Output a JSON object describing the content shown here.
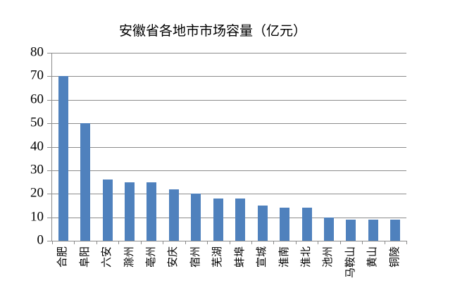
{
  "chart_data": {
    "type": "bar",
    "title": "安徽省各地市市场容量（亿元）",
    "categories": [
      "合肥",
      "阜阳",
      "六安",
      "滁州",
      "亳州",
      "安庆",
      "宿州",
      "芜湖",
      "蚌埠",
      "宣城",
      "淮南",
      "淮北",
      "池州",
      "马鞍山",
      "黄山",
      "铜陵"
    ],
    "values": [
      70,
      50,
      26,
      25,
      25,
      22,
      20,
      18,
      18,
      15,
      14,
      14,
      10,
      9,
      9,
      9
    ],
    "xlabel": "",
    "ylabel": "",
    "ylim": [
      0,
      80
    ],
    "yticks": [
      0,
      10,
      20,
      30,
      40,
      50,
      60,
      70,
      80
    ],
    "grid": true,
    "legend": "none",
    "colors": {
      "bar": "#4F81BD",
      "gridline": "#8C8C8C",
      "text": "#000000",
      "background": "#FFFFFF"
    }
  }
}
